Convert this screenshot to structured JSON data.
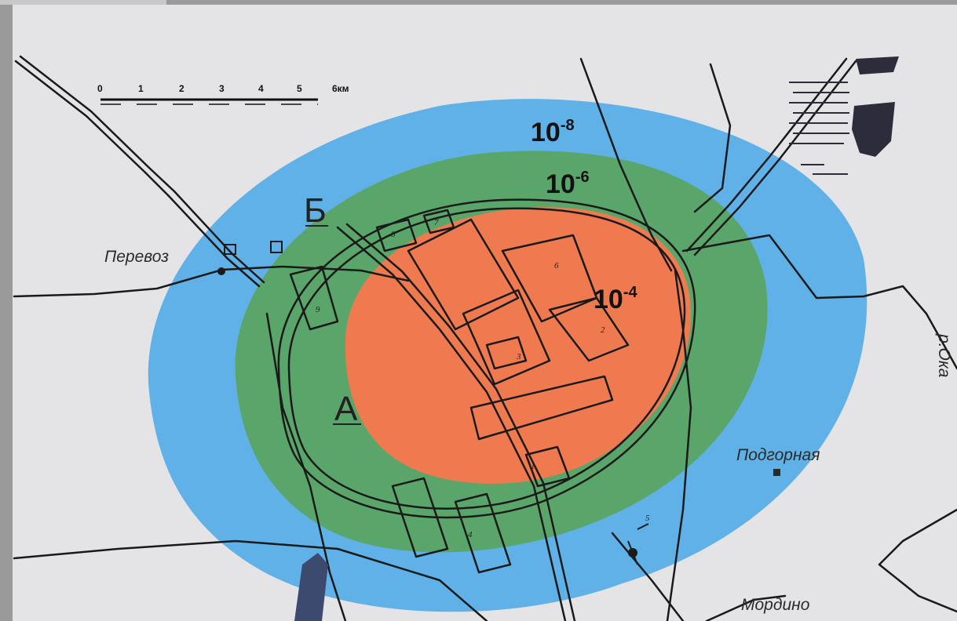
{
  "zones": [
    {
      "key": "outer",
      "base": "10",
      "exp": "-8",
      "color": "#5fb1e8"
    },
    {
      "key": "middle",
      "base": "10",
      "exp": "-6",
      "color": "#5aa66a"
    },
    {
      "key": "inner",
      "base": "10",
      "exp": "-4",
      "color": "#f07a4f"
    }
  ],
  "points": {
    "a": "А",
    "b": "Б"
  },
  "places": {
    "perevoz": "Перевоз",
    "podgornaya": "Подгорная",
    "mordino": "Мордино",
    "river": "р.Ока"
  },
  "scale_bar": {
    "ticks": [
      "0",
      "1",
      "2",
      "3",
      "4",
      "5"
    ],
    "end_label": "6км"
  },
  "building_numbers": [
    "1",
    "2",
    "3",
    "4",
    "5",
    "6",
    "7",
    "8",
    "9"
  ],
  "colors": {
    "background": "#e4e4e6",
    "frame": "#9a9a9a",
    "lines": "#1a1a1a",
    "water": "#2c2c3a"
  }
}
